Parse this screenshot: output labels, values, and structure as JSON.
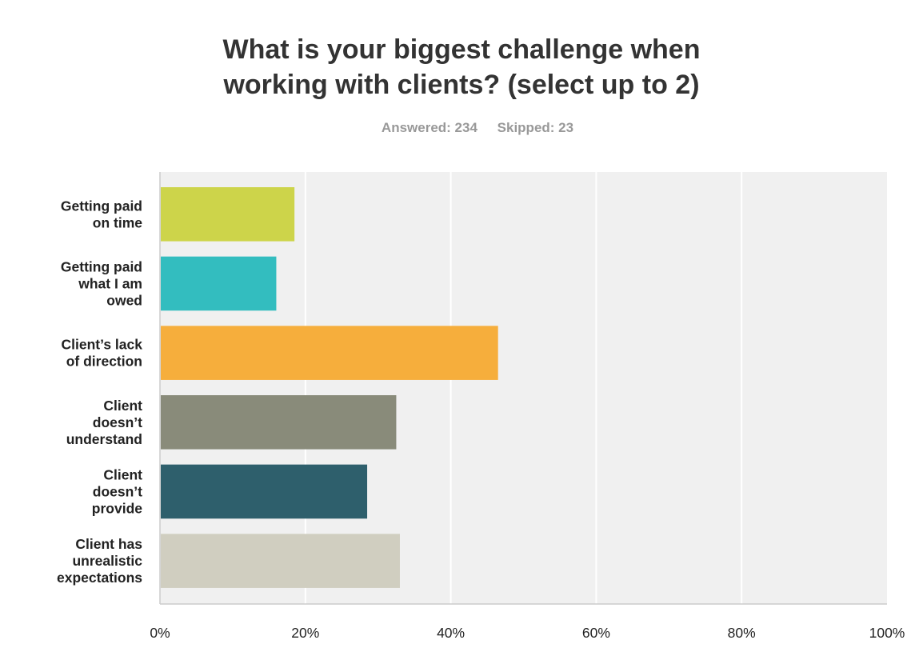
{
  "chart_data": {
    "type": "bar",
    "orientation": "horizontal",
    "title_lines": [
      "What is your biggest challenge when",
      "working with clients? (select up to 2)"
    ],
    "answered": "Answered: 234",
    "skipped": "Skipped: 23",
    "categories": [
      [
        "Getting paid",
        "on time"
      ],
      [
        "Getting paid",
        "what I am",
        "owed"
      ],
      [
        "Client’s lack",
        "of direction"
      ],
      [
        "Client",
        "doesn’t",
        "understand"
      ],
      [
        "Client",
        "doesn’t",
        "provide"
      ],
      [
        "Client has",
        "unrealistic",
        "expectations"
      ]
    ],
    "values": [
      18.5,
      16,
      46.5,
      32.5,
      28.5,
      33
    ],
    "colors": [
      "#cdd44a",
      "#33bdbf",
      "#f6ae3c",
      "#898b7a",
      "#2e5f6c",
      "#d0cec0"
    ],
    "xlim": [
      0,
      100
    ],
    "ticks": [
      "0%",
      "20%",
      "40%",
      "60%",
      "80%",
      "100%"
    ],
    "grid": true,
    "legend": "none"
  }
}
